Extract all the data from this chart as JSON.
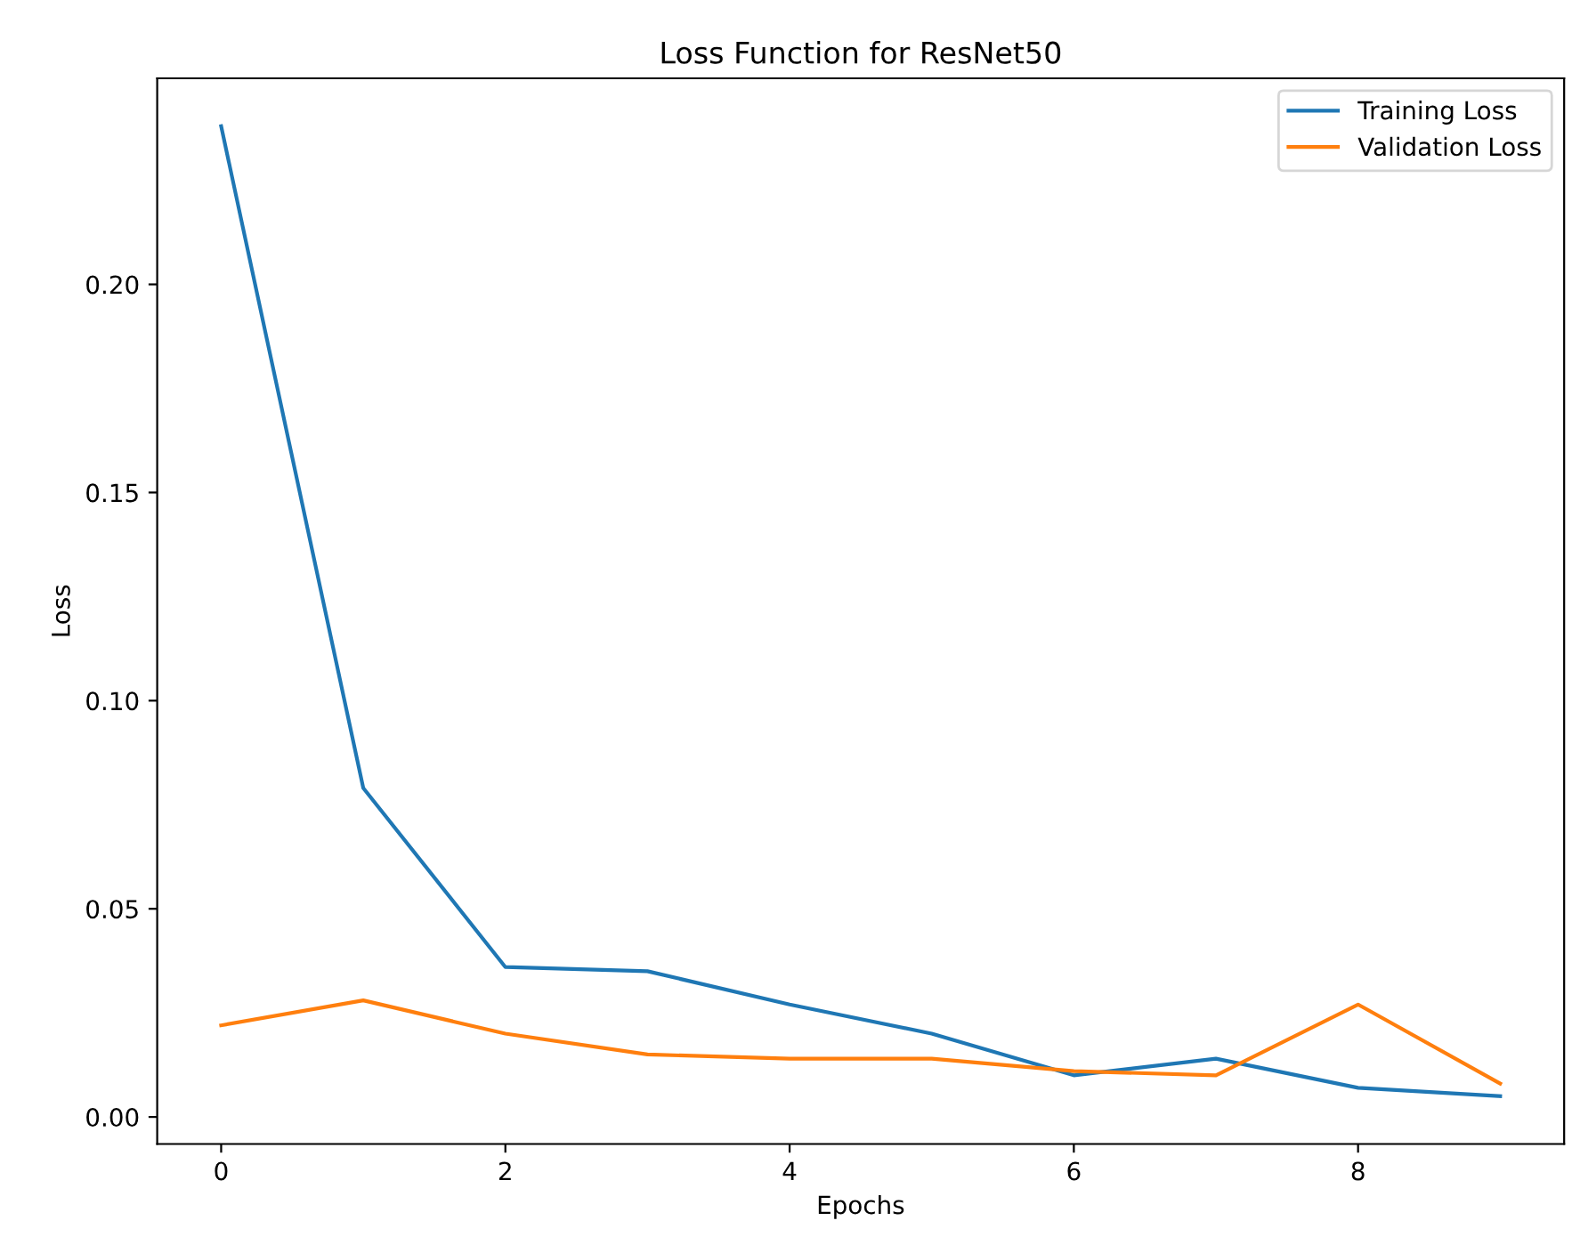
{
  "chart_data": {
    "type": "line",
    "title": "Loss Function for ResNet50",
    "xlabel": "Epochs",
    "ylabel": "Loss",
    "x": [
      0,
      1,
      2,
      3,
      4,
      5,
      6,
      7,
      8,
      9
    ],
    "series": [
      {
        "name": "Training Loss",
        "color": "#1f77b4",
        "values": [
          0.238,
          0.079,
          0.036,
          0.035,
          0.027,
          0.02,
          0.01,
          0.014,
          0.007,
          0.005
        ]
      },
      {
        "name": "Validation Loss",
        "color": "#ff7f0e",
        "values": [
          0.022,
          0.028,
          0.02,
          0.015,
          0.014,
          0.014,
          0.011,
          0.01,
          0.027,
          0.008
        ]
      }
    ],
    "xlim": [
      -0.45,
      9.45
    ],
    "xticks": [
      0,
      2,
      4,
      6,
      8
    ],
    "ylim": [
      -0.0065,
      0.2495
    ],
    "yticks": [
      {
        "value": 0,
        "label": "0.00"
      },
      {
        "value": 0.05,
        "label": "0.05"
      },
      {
        "value": 0.1,
        "label": "0.10"
      },
      {
        "value": 0.15,
        "label": "0.15"
      },
      {
        "value": 0.2,
        "label": "0.20"
      }
    ],
    "grid": false,
    "legend": "top right",
    "marker": "none",
    "line_style": "solid"
  }
}
